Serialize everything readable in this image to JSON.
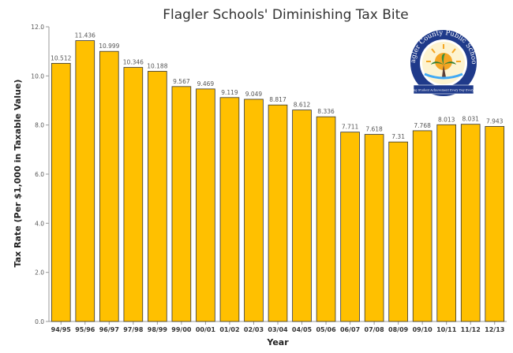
{
  "chart_data": {
    "type": "bar",
    "title": "Flagler Schools' Diminishing Tax Bite",
    "xlabel": "Year",
    "ylabel": "Tax Rate (Per $1,000 in Taxable Value)",
    "ylim": [
      0,
      12
    ],
    "yticks": [
      "0.0",
      "2.0",
      "4.0",
      "6.0",
      "8.0",
      "10.0",
      "12.0"
    ],
    "grid": false,
    "categories": [
      "94/95",
      "95/96",
      "96/97",
      "97/98",
      "98/99",
      "99/00",
      "00/01",
      "01/02",
      "02/03",
      "03/04",
      "04/05",
      "05/06",
      "06/07",
      "07/08",
      "08/09",
      "09/10",
      "10/11",
      "11/12",
      "12/13"
    ],
    "values": [
      10.512,
      11.436,
      10.999,
      10.346,
      10.188,
      9.567,
      9.469,
      9.119,
      9.049,
      8.817,
      8.612,
      8.336,
      7.711,
      7.618,
      7.31,
      7.768,
      8.013,
      8.031,
      7.943
    ],
    "value_labels": [
      "10.512",
      "11.436",
      "10.999",
      "10.346",
      "10.188",
      "9.567",
      "9.469",
      "9.119",
      "9.049",
      "8.817",
      "8.612",
      "8.336",
      "7.711",
      "7.618",
      "7.31",
      "7.768",
      "8.013",
      "8.031",
      "7.943"
    ],
    "bar_color": "#FFC000"
  },
  "logo": {
    "name": "flagler-county-public-schools-seal",
    "text": "Flagler County Public Schools",
    "banner": "Raising Student Achievement Every Day Every Way",
    "colors": {
      "navy": "#1f3a8a",
      "sun": "#f5a623",
      "palm": "#2e7d32"
    }
  }
}
